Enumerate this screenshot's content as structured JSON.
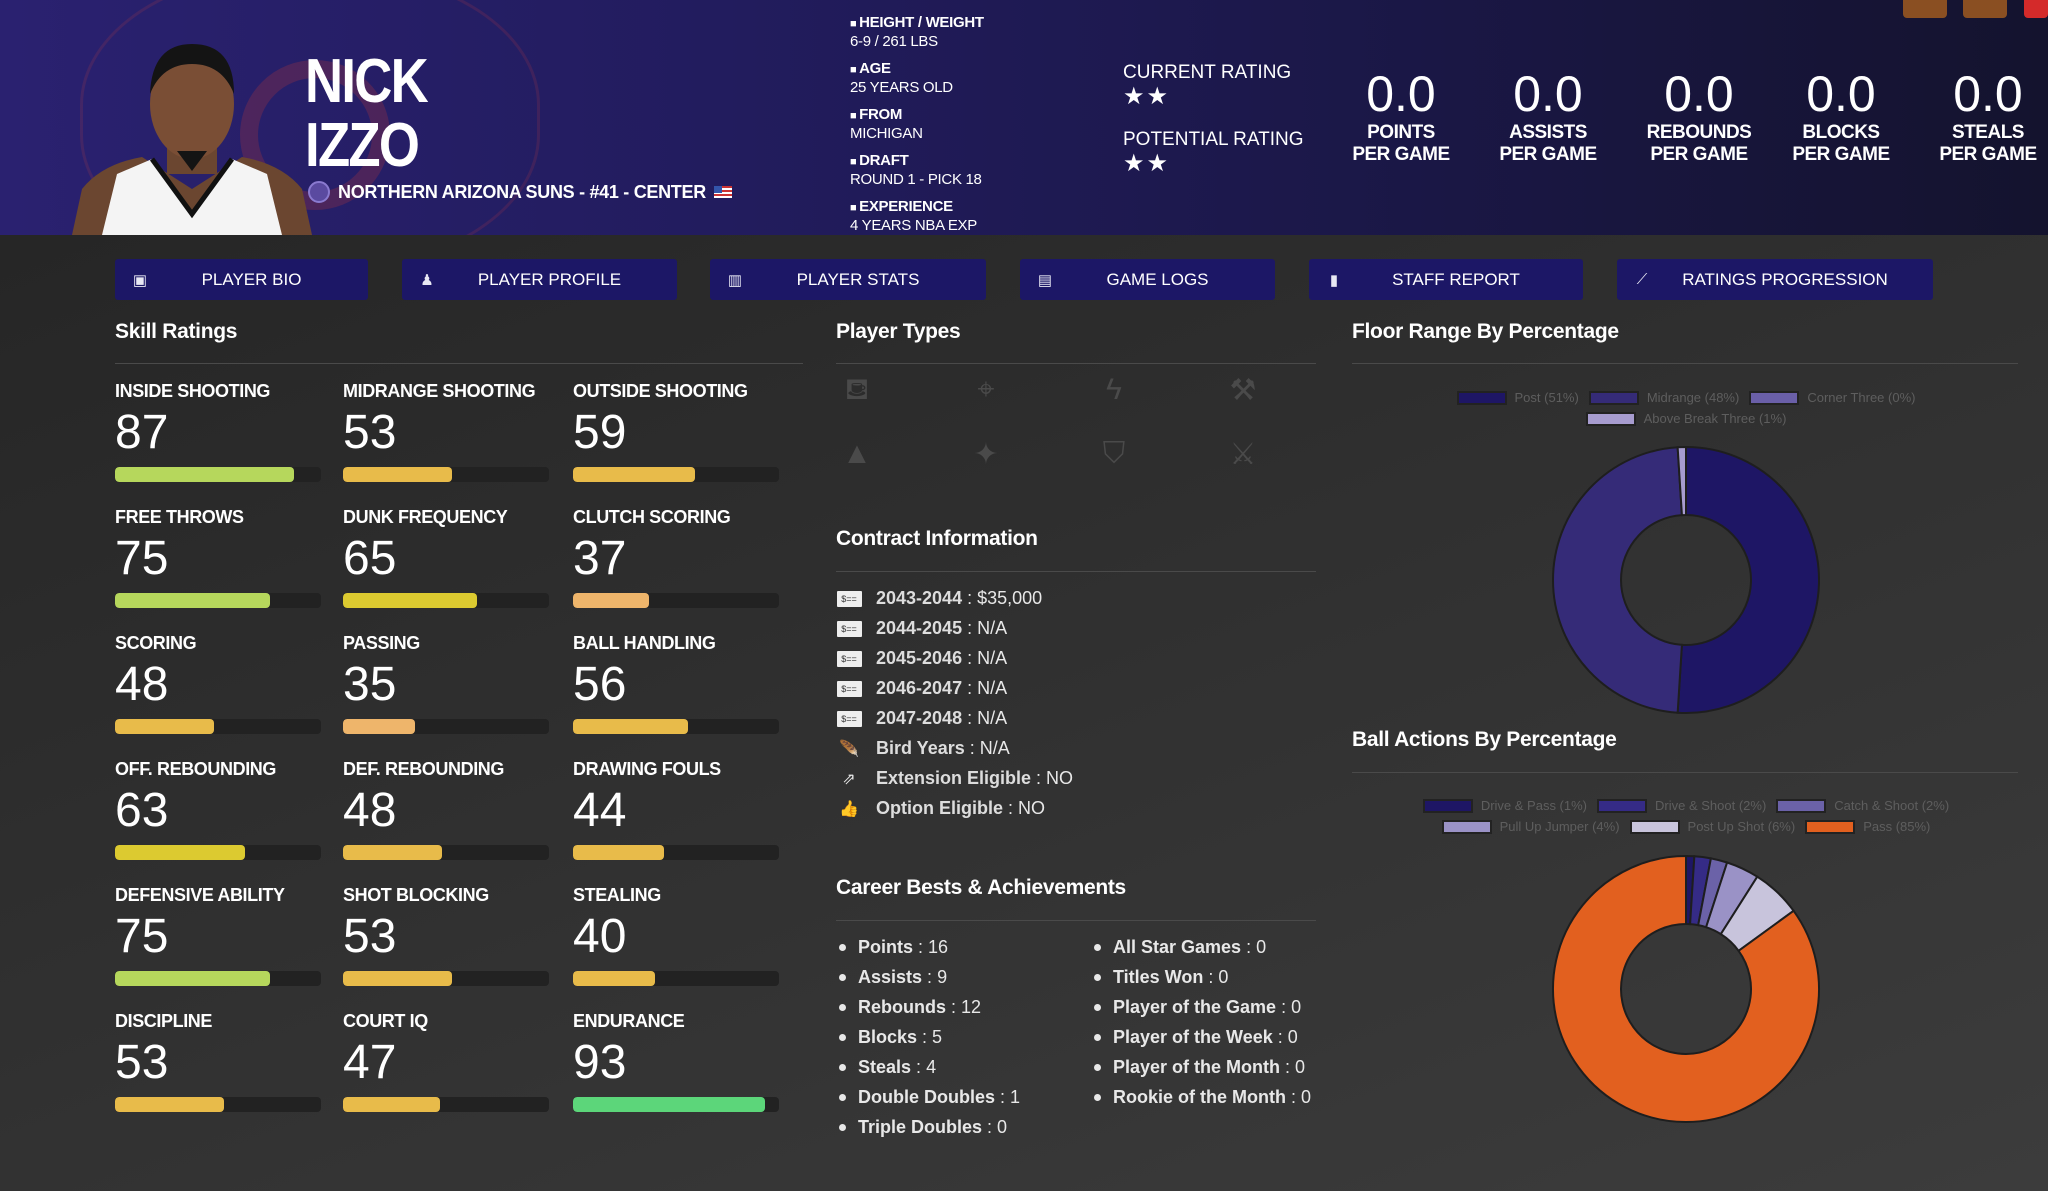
{
  "header": {
    "first_name": "NICK",
    "last_name": "IZZO",
    "team_line": "NORTHERN ARIZONA SUNS - #41 - CENTER",
    "info": [
      {
        "icon": "ruler-icon",
        "label": "HEIGHT / WEIGHT",
        "value": "6-9 / 261 LBS"
      },
      {
        "icon": "birthday-cake-icon",
        "label": "AGE",
        "value": "25 YEARS OLD"
      },
      {
        "icon": "school-icon",
        "label": "FROM",
        "value": "MICHIGAN"
      },
      {
        "icon": "hashtag-icon",
        "label": "DRAFT",
        "value": "ROUND 1 - PICK 18"
      },
      {
        "icon": "user-clock-icon",
        "label": "EXPERIENCE",
        "value": "4 YEARS NBA EXP"
      }
    ],
    "current_rating_label": "CURRENT RATING",
    "current_rating_stars": "★★",
    "current_rating": 2,
    "potential_rating_label": "POTENTIAL RATING",
    "potential_rating_stars": "★★",
    "potential_rating": 2,
    "stats": [
      {
        "value": "0.0",
        "l1": "POINTS",
        "l2": "PER GAME"
      },
      {
        "value": "0.0",
        "l1": "ASSISTS",
        "l2": "PER GAME"
      },
      {
        "value": "0.0",
        "l1": "REBOUNDS",
        "l2": "PER GAME"
      },
      {
        "value": "0.0",
        "l1": "BLOCKS",
        "l2": "PER GAME"
      },
      {
        "value": "0.0",
        "l1": "STEALS",
        "l2": "PER GAME"
      }
    ]
  },
  "nav": [
    {
      "label": "PLAYER BIO",
      "icon": "id-badge-icon"
    },
    {
      "label": "PLAYER PROFILE",
      "icon": "reader-icon"
    },
    {
      "label": "PLAYER STATS",
      "icon": "bar-chart-icon"
    },
    {
      "label": "GAME LOGS",
      "icon": "clipboard-icon"
    },
    {
      "label": "STAFF REPORT",
      "icon": "comment-icon"
    },
    {
      "label": "RATINGS PROGRESSION",
      "icon": "line-chart-icon"
    }
  ],
  "skills": {
    "title": "Skill Ratings",
    "items": [
      {
        "label": "INSIDE SHOOTING",
        "value": "87"
      },
      {
        "label": "MIDRANGE SHOOTING",
        "value": "53"
      },
      {
        "label": "OUTSIDE SHOOTING",
        "value": "59"
      },
      {
        "label": "FREE THROWS",
        "value": "75"
      },
      {
        "label": "DUNK FREQUENCY",
        "value": "65"
      },
      {
        "label": "CLUTCH SCORING",
        "value": "37"
      },
      {
        "label": "SCORING",
        "value": "48"
      },
      {
        "label": "PASSING",
        "value": "35"
      },
      {
        "label": "BALL HANDLING",
        "value": "56"
      },
      {
        "label": "OFF. REBOUNDING",
        "value": "63"
      },
      {
        "label": "DEF. REBOUNDING",
        "value": "48"
      },
      {
        "label": "DRAWING FOULS",
        "value": "44"
      },
      {
        "label": "DEFENSIVE ABILITY",
        "value": "75"
      },
      {
        "label": "SHOT BLOCKING",
        "value": "53"
      },
      {
        "label": "STEALING",
        "value": "40"
      },
      {
        "label": "DISCIPLINE",
        "value": "53"
      },
      {
        "label": "COURT IQ",
        "value": "47"
      },
      {
        "label": "ENDURANCE",
        "value": "93"
      }
    ]
  },
  "player_types": {
    "title": "Player Types",
    "icons": [
      "paint-bucket-icon",
      "crosshairs-icon",
      "bolt-icon",
      "paint-roller-icon",
      "wizard-hat-icon",
      "magic-wand-icon",
      "shield-icon",
      "broom-icon"
    ]
  },
  "contract": {
    "title": "Contract Information",
    "rows": [
      {
        "icon": "money-check-icon",
        "key": "2043-2044",
        "value": "$35,000"
      },
      {
        "icon": "money-check-icon",
        "key": "2044-2045",
        "value": "N/A"
      },
      {
        "icon": "money-check-icon",
        "key": "2045-2046",
        "value": "N/A"
      },
      {
        "icon": "money-check-icon",
        "key": "2046-2047",
        "value": "N/A"
      },
      {
        "icon": "money-check-icon",
        "key": "2047-2048",
        "value": "N/A"
      },
      {
        "icon": "feather-icon",
        "key": "Bird Years",
        "value": "N/A"
      },
      {
        "icon": "external-link-icon",
        "key": "Extension Eligible",
        "value": "NO"
      },
      {
        "icon": "thumbs-up-icon",
        "key": "Option Eligible",
        "value": "NO"
      }
    ]
  },
  "career": {
    "title": "Career Bests & Achievements",
    "left": [
      {
        "key": "Points",
        "value": "16"
      },
      {
        "key": "Assists",
        "value": "9"
      },
      {
        "key": "Rebounds",
        "value": "12"
      },
      {
        "key": "Blocks",
        "value": "5"
      },
      {
        "key": "Steals",
        "value": "4"
      },
      {
        "key": "Double Doubles",
        "value": "1"
      },
      {
        "key": "Triple Doubles",
        "value": "0"
      }
    ],
    "right": [
      {
        "key": "All Star Games",
        "value": "0"
      },
      {
        "key": "Titles Won",
        "value": "0"
      },
      {
        "key": "Player of the Game",
        "value": "0"
      },
      {
        "key": "Player of the Week",
        "value": "0"
      },
      {
        "key": "Player of the Month",
        "value": "0"
      },
      {
        "key": "Rookie of the Month",
        "value": "0"
      }
    ]
  },
  "chart_data": [
    {
      "type": "pie",
      "donut": true,
      "title": "Floor Range By Percentage",
      "legend": "top",
      "categories": [
        "Post (51%)",
        "Midrange (48%)",
        "Corner Three (0%)",
        "Above Break Three (1%)"
      ],
      "values": [
        51,
        48,
        0,
        1
      ],
      "colors": [
        "#1e1665",
        "#352b78",
        "#6a5fa8",
        "#a79ccf"
      ]
    },
    {
      "type": "pie",
      "donut": true,
      "title": "Ball Actions By Percentage",
      "legend": "top",
      "categories": [
        "Drive & Pass (1%)",
        "Drive & Shoot (2%)",
        "Catch & Shoot (2%)",
        "Pull Up Jumper (4%)",
        "Post Up Shot (6%)",
        "Pass (85%)"
      ],
      "values": [
        1,
        2,
        2,
        4,
        6,
        85
      ],
      "colors": [
        "#1e1665",
        "#352b86",
        "#6b62a8",
        "#9a92c6",
        "#c8c4dc",
        "#e2601f"
      ]
    }
  ]
}
